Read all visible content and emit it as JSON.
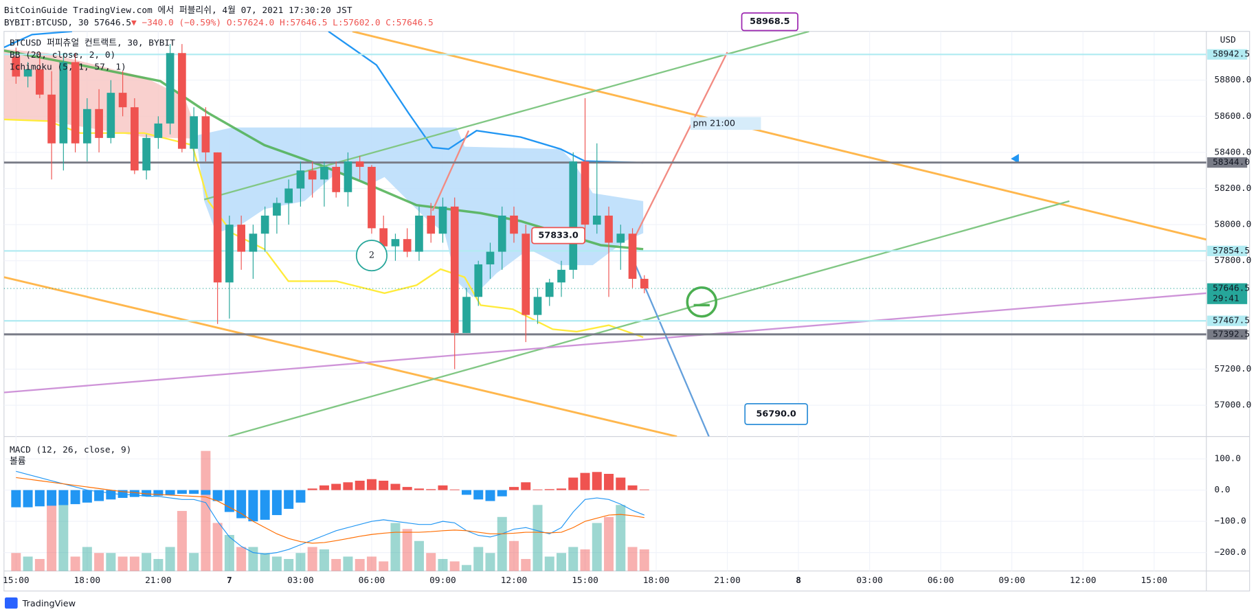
{
  "header": {
    "title": "BitCoinGuide TradingView.com 에서 퍼블리쉬, 4월 07, 2021 17:30:20 JST",
    "symbol": "BYBIT:BTCUSD, 30",
    "price": "57646.5",
    "change": "▼ −340.0 (−0.59%)",
    "ohlc": [
      "O:57624.0",
      "H:57646.5",
      "L:57602.0",
      "C:57646.5"
    ]
  },
  "legend": [
    "BTCUSD 퍼피츄얼 컨트랙트, 30, BYBIT",
    "BB (20, close, 2, 0)",
    "Ichimoku (5, 1, 57, 1)"
  ],
  "footer": "TradingView",
  "chart_data": {
    "type": "candlestick",
    "currency": "USD",
    "ylim": [
      56827,
      59070
    ],
    "yticks": [
      {
        "value": 58800,
        "label": "58800.0"
      },
      {
        "value": 58600,
        "label": "58600.0"
      },
      {
        "value": 58400,
        "label": "58400.0"
      },
      {
        "value": 58200,
        "label": "58200.0"
      },
      {
        "value": 58000,
        "label": "58000.0"
      },
      {
        "value": 57800,
        "label": "57800.0"
      },
      {
        "value": 57200,
        "label": "57200.0"
      },
      {
        "value": 57000,
        "label": "57000.0"
      }
    ],
    "xticks": [
      "15:00",
      "18:00",
      "21:00",
      "7",
      "03:00",
      "06:00",
      "09:00",
      "12:00",
      "15:00",
      "18:00",
      "21:00",
      "8",
      "03:00",
      "06:00",
      "09:00",
      "12:00",
      "15:00"
    ],
    "up_color": "#26a69a",
    "down_color": "#ef5350",
    "ohlc": [
      [
        58930,
        58980,
        58780,
        58820
      ],
      [
        58820,
        58900,
        58760,
        58860
      ],
      [
        58860,
        58950,
        58700,
        58720
      ],
      [
        58720,
        58850,
        58250,
        58450
      ],
      [
        58450,
        58950,
        58300,
        58900
      ],
      [
        58900,
        58950,
        58400,
        58450
      ],
      [
        58450,
        58700,
        58350,
        58640
      ],
      [
        58640,
        58750,
        58400,
        58480
      ],
      [
        58480,
        58800,
        58450,
        58730
      ],
      [
        58730,
        58850,
        58600,
        58650
      ],
      [
        58650,
        58700,
        58280,
        58300
      ],
      [
        58300,
        58500,
        58250,
        58480
      ],
      [
        58480,
        58600,
        58420,
        58560
      ],
      [
        58560,
        59000,
        58500,
        58950
      ],
      [
        58950,
        59000,
        58400,
        58420
      ],
      [
        58420,
        58650,
        58350,
        58600
      ],
      [
        58600,
        58650,
        58350,
        58400
      ],
      [
        58400,
        58400,
        57450,
        57680
      ],
      [
        57680,
        58050,
        57480,
        58000
      ],
      [
        58000,
        58050,
        57750,
        57850
      ],
      [
        57850,
        58000,
        57700,
        57950
      ],
      [
        57950,
        58100,
        57850,
        58050
      ],
      [
        58050,
        58150,
        57950,
        58120
      ],
      [
        58120,
        58250,
        58000,
        58200
      ],
      [
        58200,
        58350,
        58100,
        58300
      ],
      [
        58300,
        58350,
        58150,
        58250
      ],
      [
        58250,
        58350,
        58100,
        58320
      ],
      [
        58320,
        58350,
        58150,
        58180
      ],
      [
        58180,
        58400,
        58100,
        58350
      ],
      [
        58350,
        58380,
        58250,
        58320
      ],
      [
        58320,
        58330,
        57950,
        57980
      ],
      [
        57980,
        58050,
        57850,
        57880
      ],
      [
        57880,
        57950,
        57800,
        57920
      ],
      [
        57920,
        57980,
        57820,
        57850
      ],
      [
        57850,
        58100,
        57800,
        58050
      ],
      [
        58050,
        58120,
        57900,
        57950
      ],
      [
        57950,
        58150,
        57900,
        58100
      ],
      [
        58100,
        58150,
        57200,
        57400
      ],
      [
        57400,
        57650,
        57400,
        57600
      ],
      [
        57600,
        57800,
        57550,
        57780
      ],
      [
        57780,
        57900,
        57700,
        57850
      ],
      [
        57850,
        58100,
        57750,
        58050
      ],
      [
        58050,
        58100,
        57900,
        57950
      ],
      [
        57950,
        58000,
        57350,
        57500
      ],
      [
        57500,
        57650,
        57450,
        57600
      ],
      [
        57600,
        57700,
        57550,
        57680
      ],
      [
        57680,
        57800,
        57600,
        57750
      ],
      [
        57750,
        58400,
        57700,
        58350
      ],
      [
        58350,
        58700,
        57900,
        58000
      ],
      [
        58000,
        58450,
        57950,
        58050
      ],
      [
        58050,
        58100,
        57600,
        57900
      ],
      [
        57900,
        58000,
        57750,
        57950
      ],
      [
        57950,
        57980,
        57650,
        57700
      ],
      [
        57700,
        57720,
        57620,
        57646.5
      ]
    ],
    "levels": [
      {
        "value": 58942.5,
        "color": "#b2ebf2"
      },
      {
        "value": 58344,
        "label": "58344.0",
        "color": "#787b86"
      },
      {
        "value": 57854.5,
        "color": "#b2ebf2"
      },
      {
        "value": 57646.5,
        "color": "#26a69a",
        "countdown": "29:41"
      },
      {
        "value": 57467.5,
        "color": "#b2ebf2"
      },
      {
        "value": 57392.5,
        "color": "#787b86"
      }
    ],
    "annotations": [
      {
        "text": "pm 21:00",
        "color": "#d6ecfa"
      },
      {
        "text": "57833.0",
        "color": "#ef5350"
      },
      {
        "text": "56790.0",
        "color": "#2f8fd8"
      },
      {
        "text": "58968.5",
        "color": "#9c27b0"
      },
      {
        "text": "2",
        "color": "#26a69a"
      }
    ],
    "macd": {
      "title": "MACD (12, 26, close, 9)",
      "volume_title": "볼륨",
      "ylim": [
        -259,
        169
      ],
      "yticks": [
        {
          "value": 100,
          "label": "100.0"
        },
        {
          "value": 0,
          "label": "0.0"
        },
        {
          "value": -100,
          "label": "−100.0"
        },
        {
          "value": -200,
          "label": "−200.0"
        }
      ],
      "hist_pos_color": "#ef5350",
      "hist_neg_color": "#2196f3",
      "macd_color": "#2196f3",
      "signal_color": "#ff6d00",
      "histogram": [
        -55,
        -55,
        -52,
        -50,
        -48,
        -45,
        -40,
        -35,
        -30,
        -25,
        -22,
        -20,
        -18,
        -15,
        -12,
        -12,
        -15,
        -35,
        -70,
        -90,
        -100,
        -95,
        -80,
        -60,
        -40,
        5,
        15,
        20,
        25,
        30,
        35,
        30,
        20,
        10,
        5,
        3,
        15,
        2,
        -15,
        -30,
        -35,
        -20,
        10,
        25,
        2,
        3,
        5,
        40,
        55,
        58,
        52,
        40,
        15,
        2
      ],
      "macd": [
        60,
        50,
        40,
        30,
        20,
        10,
        0,
        -5,
        -10,
        -15,
        -15,
        -20,
        -20,
        -25,
        -30,
        -30,
        -40,
        -100,
        -150,
        -180,
        -200,
        -205,
        -200,
        -190,
        -175,
        -160,
        -145,
        -130,
        -120,
        -110,
        -100,
        -95,
        -100,
        -105,
        -110,
        -110,
        -100,
        -105,
        -130,
        -145,
        -150,
        -140,
        -125,
        -120,
        -130,
        -140,
        -120,
        -70,
        -30,
        -25,
        -30,
        -45,
        -65,
        -80
      ],
      "signal": [
        40,
        35,
        30,
        25,
        20,
        15,
        10,
        5,
        0,
        -5,
        -8,
        -12,
        -14,
        -16,
        -18,
        -20,
        -22,
        -35,
        -55,
        -75,
        -100,
        -120,
        -140,
        -155,
        -165,
        -170,
        -168,
        -162,
        -155,
        -148,
        -142,
        -138,
        -135,
        -135,
        -135,
        -133,
        -130,
        -128,
        -130,
        -135,
        -140,
        -140,
        -138,
        -135,
        -135,
        -137,
        -135,
        -120,
        -100,
        -90,
        -80,
        -78,
        -82,
        -88
      ],
      "volume": [
        15,
        12,
        10,
        60,
        60,
        12,
        20,
        15,
        15,
        12,
        12,
        15,
        10,
        20,
        50,
        15,
        100,
        40,
        30,
        20,
        20,
        15,
        12,
        10,
        15,
        20,
        18,
        10,
        12,
        10,
        12,
        8,
        40,
        35,
        25,
        15,
        10,
        8,
        5,
        20,
        15,
        45,
        25,
        10,
        55,
        12,
        15,
        20,
        18,
        40,
        45,
        55,
        20,
        18
      ]
    }
  }
}
